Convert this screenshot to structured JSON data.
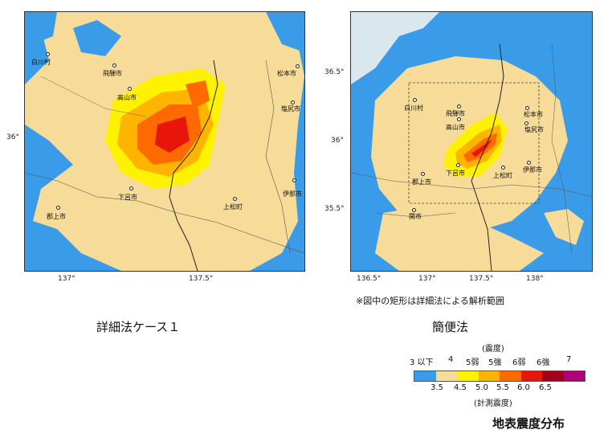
{
  "left_map": {
    "cities": [
      {
        "name": "白川村"
      },
      {
        "name": "飛騨市"
      },
      {
        "name": "高山市"
      },
      {
        "name": "松本市"
      },
      {
        "name": "塩尻市"
      },
      {
        "name": "下呂市"
      },
      {
        "name": "郡上市"
      },
      {
        "name": "上松町"
      },
      {
        "name": "伊那市"
      }
    ],
    "x_ticks": [
      "137°",
      "137.5°"
    ],
    "y_ticks": [
      "36°"
    ],
    "caption": "詳細法ケース１"
  },
  "right_map": {
    "cities": [
      {
        "name": "白川村"
      },
      {
        "name": "飛騨市"
      },
      {
        "name": "高山市"
      },
      {
        "name": "松本市"
      },
      {
        "name": "塩尻市"
      },
      {
        "name": "下呂市"
      },
      {
        "name": "郡上市"
      },
      {
        "name": "上松町"
      },
      {
        "name": "伊那市"
      },
      {
        "name": "関市"
      }
    ],
    "x_ticks": [
      "136.5°",
      "137°",
      "137.5°",
      "138°"
    ],
    "y_ticks": [
      "36.5°",
      "36°",
      "35.5°"
    ],
    "note": "※図中の矩形は詳細法による解析範囲",
    "caption": "簡便法"
  },
  "legend": {
    "top_label": "(震度)",
    "intensity_labels": [
      "3 以下",
      "4",
      "5弱",
      "5強",
      "6弱",
      "6強",
      "7"
    ],
    "colors": [
      "#3a9be8",
      "#f6dc98",
      "#fff200",
      "#ffb400",
      "#ff6a00",
      "#e8150a",
      "#a3001c",
      "#b0007a"
    ],
    "value_labels": [
      "3.5",
      "4.5",
      "5.0",
      "5.5",
      "6.0",
      "6.5"
    ],
    "bottom_label": "(計測震度)",
    "title": "地表震度分布"
  }
}
